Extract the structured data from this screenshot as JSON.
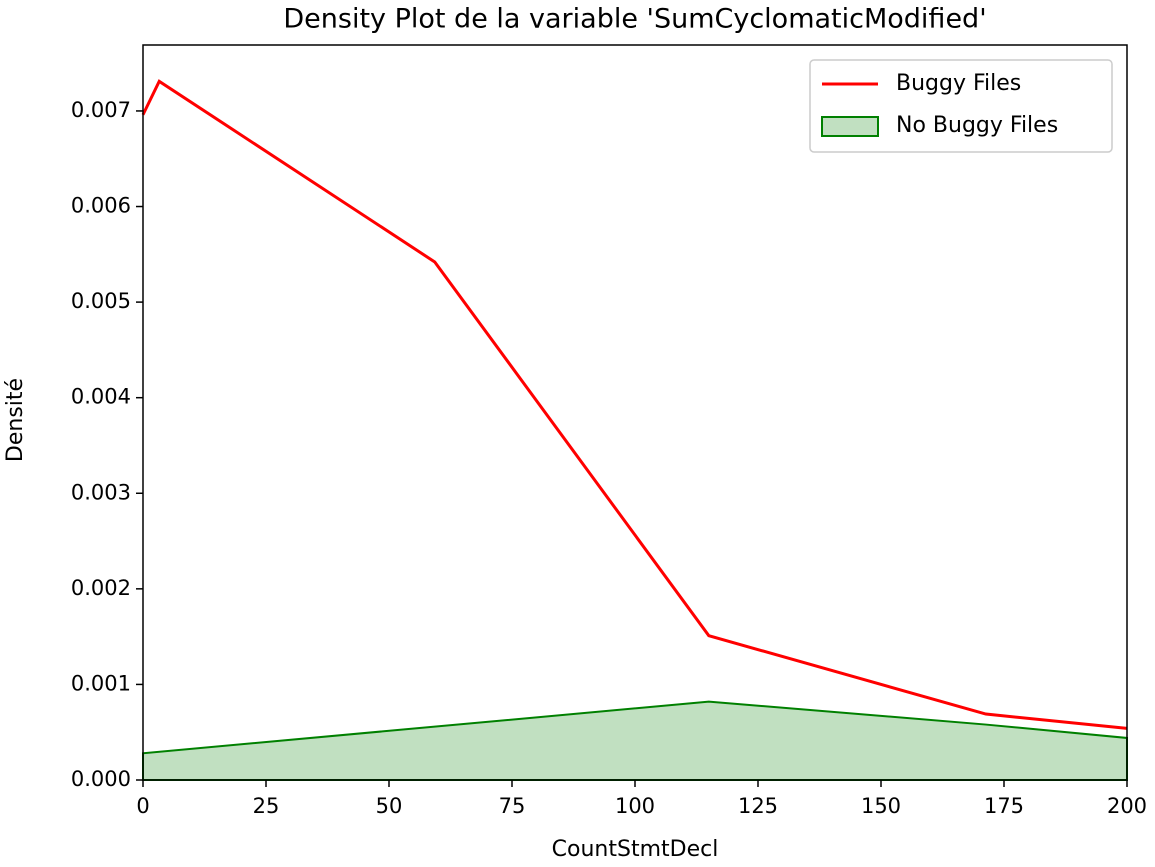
{
  "chart_data": {
    "type": "density",
    "title": "Density Plot de la variable 'SumCyclomaticModified'",
    "x_label": "CountStmtDecl",
    "y_label": "Densité",
    "xlim": [
      0,
      200
    ],
    "ylim": [
      0,
      0.00769
    ],
    "xticks": [
      0,
      25,
      50,
      75,
      100,
      125,
      150,
      175,
      200
    ],
    "yticks": [
      {
        "value": 0,
        "label": "0.000"
      },
      {
        "value": 0.001,
        "label": "0.001"
      },
      {
        "value": 0.002,
        "label": "0.002"
      },
      {
        "value": 0.003,
        "label": "0.003"
      },
      {
        "value": 0.004,
        "label": "0.004"
      },
      {
        "value": 0.005,
        "label": "0.005"
      },
      {
        "value": 0.006,
        "label": "0.006"
      },
      {
        "value": 0.007,
        "label": "0.007"
      }
    ],
    "legend": "upper right",
    "series": [
      {
        "name": "Buggy Files",
        "color": "#ff0000",
        "style": "line",
        "x": [
          0,
          3.3,
          59.3,
          115,
          171.3,
          200
        ],
        "values": [
          0.00696,
          0.00731,
          0.00542,
          0.00151,
          0.00069,
          0.00054
        ]
      },
      {
        "name": "No Buggy Files",
        "color": "#008000",
        "fill": "#c1e0c1",
        "style": "area",
        "x": [
          0,
          115,
          171.3,
          200
        ],
        "values": [
          0.00028,
          0.00082,
          0.00058,
          0.00044
        ]
      }
    ]
  }
}
